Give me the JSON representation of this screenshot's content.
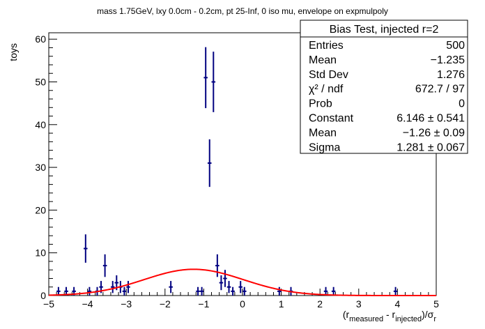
{
  "chart_data": {
    "type": "scatter",
    "title": "mass 1.75GeV, lxy 0.0cm - 0.2cm, pt 25-Inf, 0 iso mu, envelope on expmulpoly",
    "ylabel": "toys",
    "xlabel": "(r_measured - r_injected)/σ_r",
    "xlabel_parts": {
      "open": "(r",
      "sub1": "measured",
      "mid": " - r",
      "sub2": "injected",
      "close": ")/σ",
      "sub3": "r"
    },
    "xlim": [
      -5,
      5
    ],
    "ylim": [
      0,
      61.5
    ],
    "xticks": [
      -5,
      -4,
      -3,
      -2,
      -1,
      0,
      1,
      2,
      3,
      4,
      5
    ],
    "yticks": [
      0,
      10,
      20,
      30,
      40,
      50,
      60
    ],
    "bin_width": 0.1,
    "series": [
      {
        "kind": "histogram-errorbars",
        "color": "#000080",
        "x": [
          -4.75,
          -4.55,
          -4.35,
          -4.05,
          -3.95,
          -3.75,
          -3.65,
          -3.55,
          -3.35,
          -3.25,
          -3.15,
          -3.05,
          -2.95,
          -1.85,
          -1.15,
          -1.05,
          -0.95,
          -0.85,
          -0.75,
          -0.65,
          -0.55,
          -0.45,
          -0.35,
          -0.25,
          -0.05,
          0.05,
          0.95,
          1.25,
          2.15,
          2.35,
          3.95
        ],
        "y": [
          1,
          1,
          1,
          11,
          1,
          1,
          2,
          7,
          2,
          3,
          2,
          1,
          2,
          2,
          1,
          1,
          51,
          31,
          50,
          7,
          3,
          4,
          2,
          1,
          2,
          1,
          1,
          1,
          1,
          1,
          1
        ]
      },
      {
        "kind": "gaussian-fit",
        "color": "#ff0000",
        "constant": 6.146,
        "mean": -1.26,
        "sigma": 1.281
      }
    ]
  },
  "stats": {
    "title": "Bias Test, injected r=2",
    "rows": [
      {
        "label": "Entries",
        "value": "500"
      },
      {
        "label": "Mean",
        "value": "−1.235"
      },
      {
        "label": "Std Dev",
        "value": "1.276"
      },
      {
        "label": "χ² / ndf",
        "value": "672.7 / 97"
      },
      {
        "label": "Prob",
        "value": "0"
      },
      {
        "label": "Constant",
        "value": "6.146 ± 0.541"
      },
      {
        "label": "Mean",
        "value": "−1.26 ± 0.09"
      },
      {
        "label": "Sigma",
        "value": "1.281 ± 0.067"
      }
    ]
  }
}
